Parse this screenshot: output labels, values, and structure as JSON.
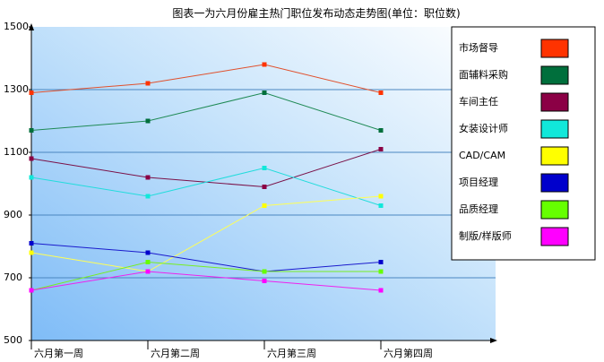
{
  "chart_data": {
    "type": "line",
    "title": "图表一为六月份雇主热门职位发布动态走势图(单位：职位数)",
    "xlabel": "",
    "ylabel": "",
    "categories": [
      "六月第一周",
      "六月第二周",
      "六月第三周",
      "六月第四周"
    ],
    "ylim": [
      500,
      1500
    ],
    "yticks": [
      500,
      700,
      900,
      1100,
      1300,
      1500
    ],
    "grid": true,
    "legend_position": "right",
    "series": [
      {
        "name": "市场督导",
        "color": "#ff3300",
        "line_color": "#e0502c",
        "values": [
          1290,
          1320,
          1380,
          1290
        ]
      },
      {
        "name": "面辅料采购",
        "color": "#006f3c",
        "line_color": "#1f8a55",
        "values": [
          1170,
          1200,
          1290,
          1170
        ]
      },
      {
        "name": "车间主任",
        "color": "#8b0045",
        "line_color": "#7a1148",
        "values": [
          1080,
          1020,
          990,
          1110
        ]
      },
      {
        "name": "女装设计师",
        "color": "#11e8da",
        "line_color": "#22dcdc",
        "values": [
          1020,
          960,
          1050,
          930
        ]
      },
      {
        "name": "CAD/CAM",
        "color": "#ffff00",
        "line_color": "#ffff55",
        "values": [
          780,
          720,
          930,
          960
        ]
      },
      {
        "name": "项目经理",
        "color": "#0000cc",
        "line_color": "#1a1acc",
        "values": [
          810,
          780,
          720,
          750
        ]
      },
      {
        "name": "品质经理",
        "color": "#66ff00",
        "line_color": "#77ee22",
        "values": [
          660,
          750,
          720,
          720
        ]
      },
      {
        "name": "制版/样版师",
        "color": "#ff00ff",
        "line_color": "#ee22ee",
        "values": [
          660,
          720,
          690,
          660
        ]
      }
    ]
  }
}
